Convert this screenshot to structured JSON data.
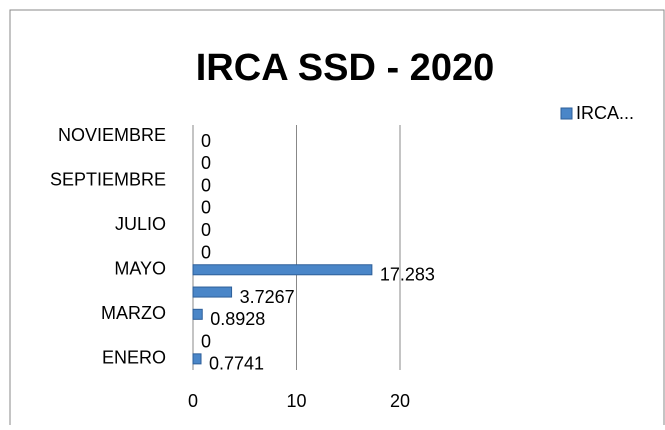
{
  "chart_data": {
    "type": "barh",
    "title": "IRCA SSD - 2020",
    "categories": [
      "ENERO",
      null,
      "MARZO",
      null,
      "MAYO",
      null,
      "JULIO",
      null,
      "SEPTIEMBRE",
      null,
      "NOVIEMBRE"
    ],
    "series": [
      {
        "name": "IRCA...",
        "color": "#4a86c8",
        "values": [
          0.7741,
          0,
          0.8928,
          3.7267,
          17.283,
          0,
          0,
          0,
          0,
          0,
          0
        ]
      }
    ],
    "xlim": [
      0,
      20
    ],
    "xticks": [
      0,
      10,
      20
    ],
    "grid": true,
    "legend": "top-right"
  }
}
